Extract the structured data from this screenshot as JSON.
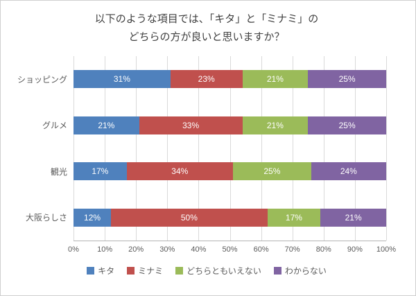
{
  "title_line1": "以下のような項目では、「キタ」と「ミナミ」の",
  "title_line2": "どちらの方が良いと思いますか？",
  "chart_data": {
    "type": "bar",
    "orientation": "horizontal",
    "stacked": true,
    "title": "以下のような項目では、「キタ」と「ミナミ」の どちらの方が良いと思いますか？",
    "categories": [
      "ショッピング",
      "グルメ",
      "観光",
      "大阪らしさ"
    ],
    "series": [
      {
        "name": "キタ",
        "color": "#4F81BD",
        "values": [
          31,
          21,
          17,
          12
        ]
      },
      {
        "name": "ミナミ",
        "color": "#C0504D",
        "values": [
          23,
          33,
          34,
          50
        ]
      },
      {
        "name": "どちらともいえない",
        "color": "#9BBB59",
        "values": [
          21,
          21,
          25,
          17
        ]
      },
      {
        "name": "わからない",
        "color": "#8064A2",
        "values": [
          25,
          25,
          24,
          21
        ]
      }
    ],
    "value_suffix": "%",
    "xlim": [
      0,
      100
    ],
    "xtick_step": 10,
    "xtick_labels": [
      "0%",
      "10%",
      "20%",
      "30%",
      "40%",
      "50%",
      "60%",
      "70%",
      "80%",
      "90%",
      "100%"
    ],
    "grid": true,
    "legend_position": "bottom"
  }
}
